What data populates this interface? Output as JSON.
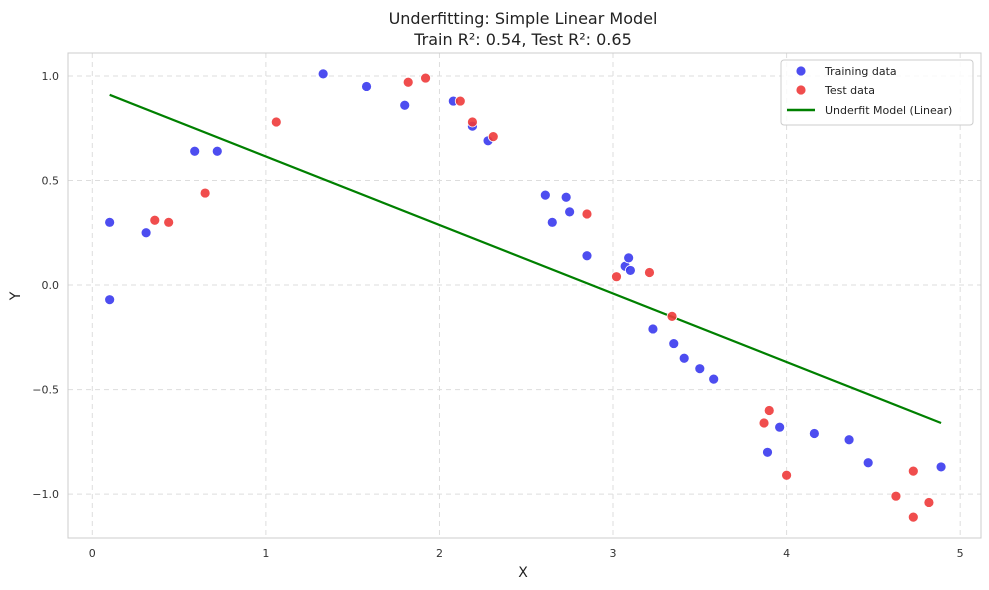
{
  "chart_data": {
    "type": "scatter",
    "title": "Underfitting: Simple Linear Model",
    "subtitle": "Train R²: 0.54, Test R²: 0.65",
    "xlabel": "X",
    "ylabel": "Y",
    "xlim": [
      -0.14,
      5.12
    ],
    "ylim": [
      -1.21,
      1.11
    ],
    "xticks": [
      0,
      1,
      2,
      3,
      4,
      5
    ],
    "yticks": [
      1.0,
      0.5,
      0.0,
      -0.5,
      -1.0
    ],
    "xtick_labels": [
      "0",
      "1",
      "2",
      "3",
      "4",
      "5"
    ],
    "ytick_labels": [
      "1.0",
      "0.5",
      "0.0",
      "−0.5",
      "−1.0"
    ],
    "grid": true,
    "legend_position": "top-right",
    "series": [
      {
        "name": "Training data",
        "kind": "scatter",
        "color": "#3a3aee",
        "points": [
          [
            0.1,
            0.3
          ],
          [
            0.1,
            -0.07
          ],
          [
            0.31,
            0.25
          ],
          [
            0.59,
            0.64
          ],
          [
            0.72,
            0.64
          ],
          [
            1.33,
            1.01
          ],
          [
            1.58,
            0.95
          ],
          [
            1.8,
            0.86
          ],
          [
            2.08,
            0.88
          ],
          [
            2.19,
            0.76
          ],
          [
            2.28,
            0.69
          ],
          [
            2.61,
            0.43
          ],
          [
            2.65,
            0.3
          ],
          [
            2.73,
            0.42
          ],
          [
            2.75,
            0.35
          ],
          [
            2.85,
            0.14
          ],
          [
            3.07,
            0.09
          ],
          [
            3.09,
            0.13
          ],
          [
            3.1,
            0.07
          ],
          [
            3.23,
            -0.21
          ],
          [
            3.35,
            -0.28
          ],
          [
            3.41,
            -0.35
          ],
          [
            3.5,
            -0.4
          ],
          [
            3.58,
            -0.45
          ],
          [
            3.89,
            -0.8
          ],
          [
            3.96,
            -0.68
          ],
          [
            4.16,
            -0.71
          ],
          [
            4.36,
            -0.74
          ],
          [
            4.47,
            -0.85
          ],
          [
            4.89,
            -0.87
          ]
        ]
      },
      {
        "name": "Test data",
        "kind": "scatter",
        "color": "#ee3a3a",
        "points": [
          [
            0.36,
            0.31
          ],
          [
            0.44,
            0.3
          ],
          [
            0.65,
            0.44
          ],
          [
            1.06,
            0.78
          ],
          [
            1.82,
            0.97
          ],
          [
            1.92,
            0.99
          ],
          [
            2.12,
            0.88
          ],
          [
            2.19,
            0.78
          ],
          [
            2.31,
            0.71
          ],
          [
            2.85,
            0.34
          ],
          [
            3.02,
            0.04
          ],
          [
            3.21,
            0.06
          ],
          [
            3.34,
            -0.15
          ],
          [
            3.87,
            -0.66
          ],
          [
            3.9,
            -0.6
          ],
          [
            4.0,
            -0.91
          ],
          [
            4.63,
            -1.01
          ],
          [
            4.73,
            -0.89
          ],
          [
            4.73,
            -1.11
          ],
          [
            4.82,
            -1.04
          ]
        ]
      },
      {
        "name": "Underfit Model (Linear)",
        "kind": "line",
        "color": "#008000",
        "points": [
          [
            0.1,
            0.91
          ],
          [
            4.89,
            -0.66
          ]
        ]
      }
    ]
  }
}
